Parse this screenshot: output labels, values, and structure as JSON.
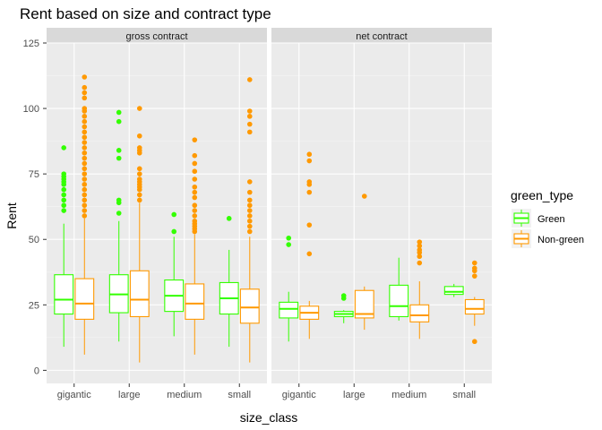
{
  "chart_data": {
    "type": "boxplot",
    "title": "Rent based on size and contract type",
    "xlabel": "size_class",
    "ylabel": "Rent",
    "ylim": [
      -5,
      125
    ],
    "yticks": [
      0,
      25,
      50,
      75,
      100,
      125
    ],
    "categories": [
      "gigantic",
      "large",
      "medium",
      "small"
    ],
    "grid": true,
    "legend": {
      "title": "green_type",
      "placement": "right",
      "entries": [
        {
          "name": "Green",
          "color": "#33ff00"
        },
        {
          "name": "Non-green",
          "color": "#ff9900"
        }
      ]
    },
    "panels": [
      {
        "label": "gross contract",
        "boxes": [
          {
            "category": "gigantic",
            "series": "Green",
            "min": 9,
            "q1": 21.5,
            "median": 27,
            "q3": 36.5,
            "max": 56,
            "outliers": [
              61,
              63,
              65,
              67,
              69,
              71,
              72,
              73,
              74,
              75,
              85
            ]
          },
          {
            "category": "gigantic",
            "series": "Non-green",
            "min": 6,
            "q1": 19.5,
            "median": 25.5,
            "q3": 35,
            "max": 58,
            "outliers": [
              59,
              61,
              63,
              65,
              67,
              69,
              71,
              73,
              75,
              77,
              79,
              81,
              83,
              85,
              87,
              89,
              91,
              93,
              95,
              97,
              99,
              100,
              104,
              106,
              108,
              112
            ]
          },
          {
            "category": "large",
            "series": "Green",
            "min": 11,
            "q1": 22,
            "median": 29,
            "q3": 36.5,
            "max": 57,
            "outliers": [
              60,
              64,
              65,
              81,
              84,
              95,
              98.5
            ]
          },
          {
            "category": "large",
            "series": "Non-green",
            "min": 3,
            "q1": 20.5,
            "median": 27,
            "q3": 38,
            "max": 64,
            "outliers": [
              65,
              67,
              69,
              70,
              71,
              72,
              73,
              75,
              77,
              83,
              84,
              85,
              89.5,
              100
            ]
          },
          {
            "category": "medium",
            "series": "Green",
            "min": 13,
            "q1": 22.5,
            "median": 28.5,
            "q3": 34.5,
            "max": 51,
            "outliers": [
              53,
              59.5
            ]
          },
          {
            "category": "medium",
            "series": "Non-green",
            "min": 6,
            "q1": 19.5,
            "median": 25.5,
            "q3": 33,
            "max": 52,
            "outliers": [
              53,
              54,
              55,
              56,
              57,
              59,
              61,
              63,
              66,
              68,
              70,
              73,
              76,
              79,
              82,
              88
            ]
          },
          {
            "category": "small",
            "series": "Green",
            "min": 9,
            "q1": 21.5,
            "median": 27.5,
            "q3": 33.5,
            "max": 46,
            "outliers": [
              58
            ]
          },
          {
            "category": "small",
            "series": "Non-green",
            "min": 3,
            "q1": 18,
            "median": 24,
            "q3": 31,
            "max": 51,
            "outliers": [
              53,
              55,
              57,
              59,
              61,
              63,
              65,
              68,
              72,
              91,
              94,
              97,
              99,
              111
            ]
          }
        ]
      },
      {
        "label": "net contract",
        "boxes": [
          {
            "category": "gigantic",
            "series": "Green",
            "min": 11,
            "q1": 20,
            "median": 23.5,
            "q3": 26,
            "max": 30,
            "outliers": [
              48,
              50.5
            ]
          },
          {
            "category": "gigantic",
            "series": "Non-green",
            "min": 12,
            "q1": 19.5,
            "median": 22,
            "q3": 24.5,
            "max": 26.5,
            "outliers": [
              44.5,
              55.5,
              68,
              71,
              72,
              80,
              82.5
            ]
          },
          {
            "category": "large",
            "series": "Green",
            "min": 18,
            "q1": 20.5,
            "median": 21.5,
            "q3": 22.5,
            "max": 23,
            "outliers": [
              27.5,
              28.5
            ]
          },
          {
            "category": "large",
            "series": "Non-green",
            "min": 15.5,
            "q1": 20,
            "median": 21.5,
            "q3": 30.5,
            "max": 32,
            "outliers": [
              66.5
            ]
          },
          {
            "category": "medium",
            "series": "Green",
            "min": 19,
            "q1": 20.5,
            "median": 24.5,
            "q3": 32.5,
            "max": 43,
            "outliers": []
          },
          {
            "category": "medium",
            "series": "Non-green",
            "min": 12,
            "q1": 18.5,
            "median": 21,
            "q3": 25,
            "max": 34,
            "outliers": [
              41,
              43.5,
              45,
              46,
              47.5,
              49
            ]
          },
          {
            "category": "small",
            "series": "Green",
            "min": 28,
            "q1": 29,
            "median": 30,
            "q3": 32,
            "max": 33,
            "outliers": []
          },
          {
            "category": "small",
            "series": "Non-green",
            "min": 17,
            "q1": 21.5,
            "median": 23.5,
            "q3": 27,
            "max": 28,
            "outliers": [
              11,
              36,
              38,
              39,
              41
            ]
          }
        ]
      }
    ]
  }
}
